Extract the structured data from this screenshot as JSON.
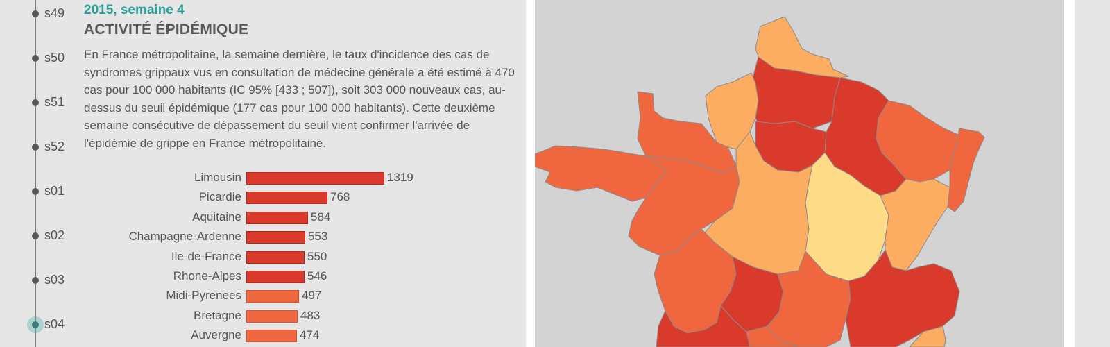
{
  "timeline": {
    "weeks": [
      "s49",
      "s50",
      "s51",
      "s52",
      "s01",
      "s02",
      "s03",
      "s04"
    ],
    "active_index": 7
  },
  "content": {
    "subtitle": "2015, semaine 4",
    "title": "ACTIVITÉ ÉPIDÉMIQUE",
    "description": "En France métropolitaine, la semaine dernière, le taux d'incidence des cas de syndromes grippaux vus en consultation de médecine générale a été estimé à 470 cas pour 100 000 habitants (IC 95% [433 ; 507]), soit 303 000 nouveaux cas, au-dessus du seuil épidémique (177 cas pour 100 000 habitants). Cette deuxième semaine consécutive de dépassement du seuil vient confirmer l'arrivée de l'épidémie de grippe en France métropolitaine."
  },
  "colors": {
    "high": "#d93a2b",
    "medium": "#f0673f",
    "mid_low": "#fcad62",
    "low": "#fedb86",
    "accent": "#2aa198"
  },
  "chart_data": {
    "type": "bar",
    "orientation": "horizontal",
    "categories": [
      "Limousin",
      "Picardie",
      "Aquitaine",
      "Champagne-Ardenne",
      "Ile-de-France",
      "Rhone-Alpes",
      "Midi-Pyrenees",
      "Bretagne",
      "Auvergne"
    ],
    "values": [
      1319,
      768,
      584,
      553,
      550,
      546,
      497,
      483,
      474
    ],
    "levels": [
      "high",
      "high",
      "high",
      "high",
      "high",
      "high",
      "medium",
      "medium",
      "medium"
    ]
  }
}
